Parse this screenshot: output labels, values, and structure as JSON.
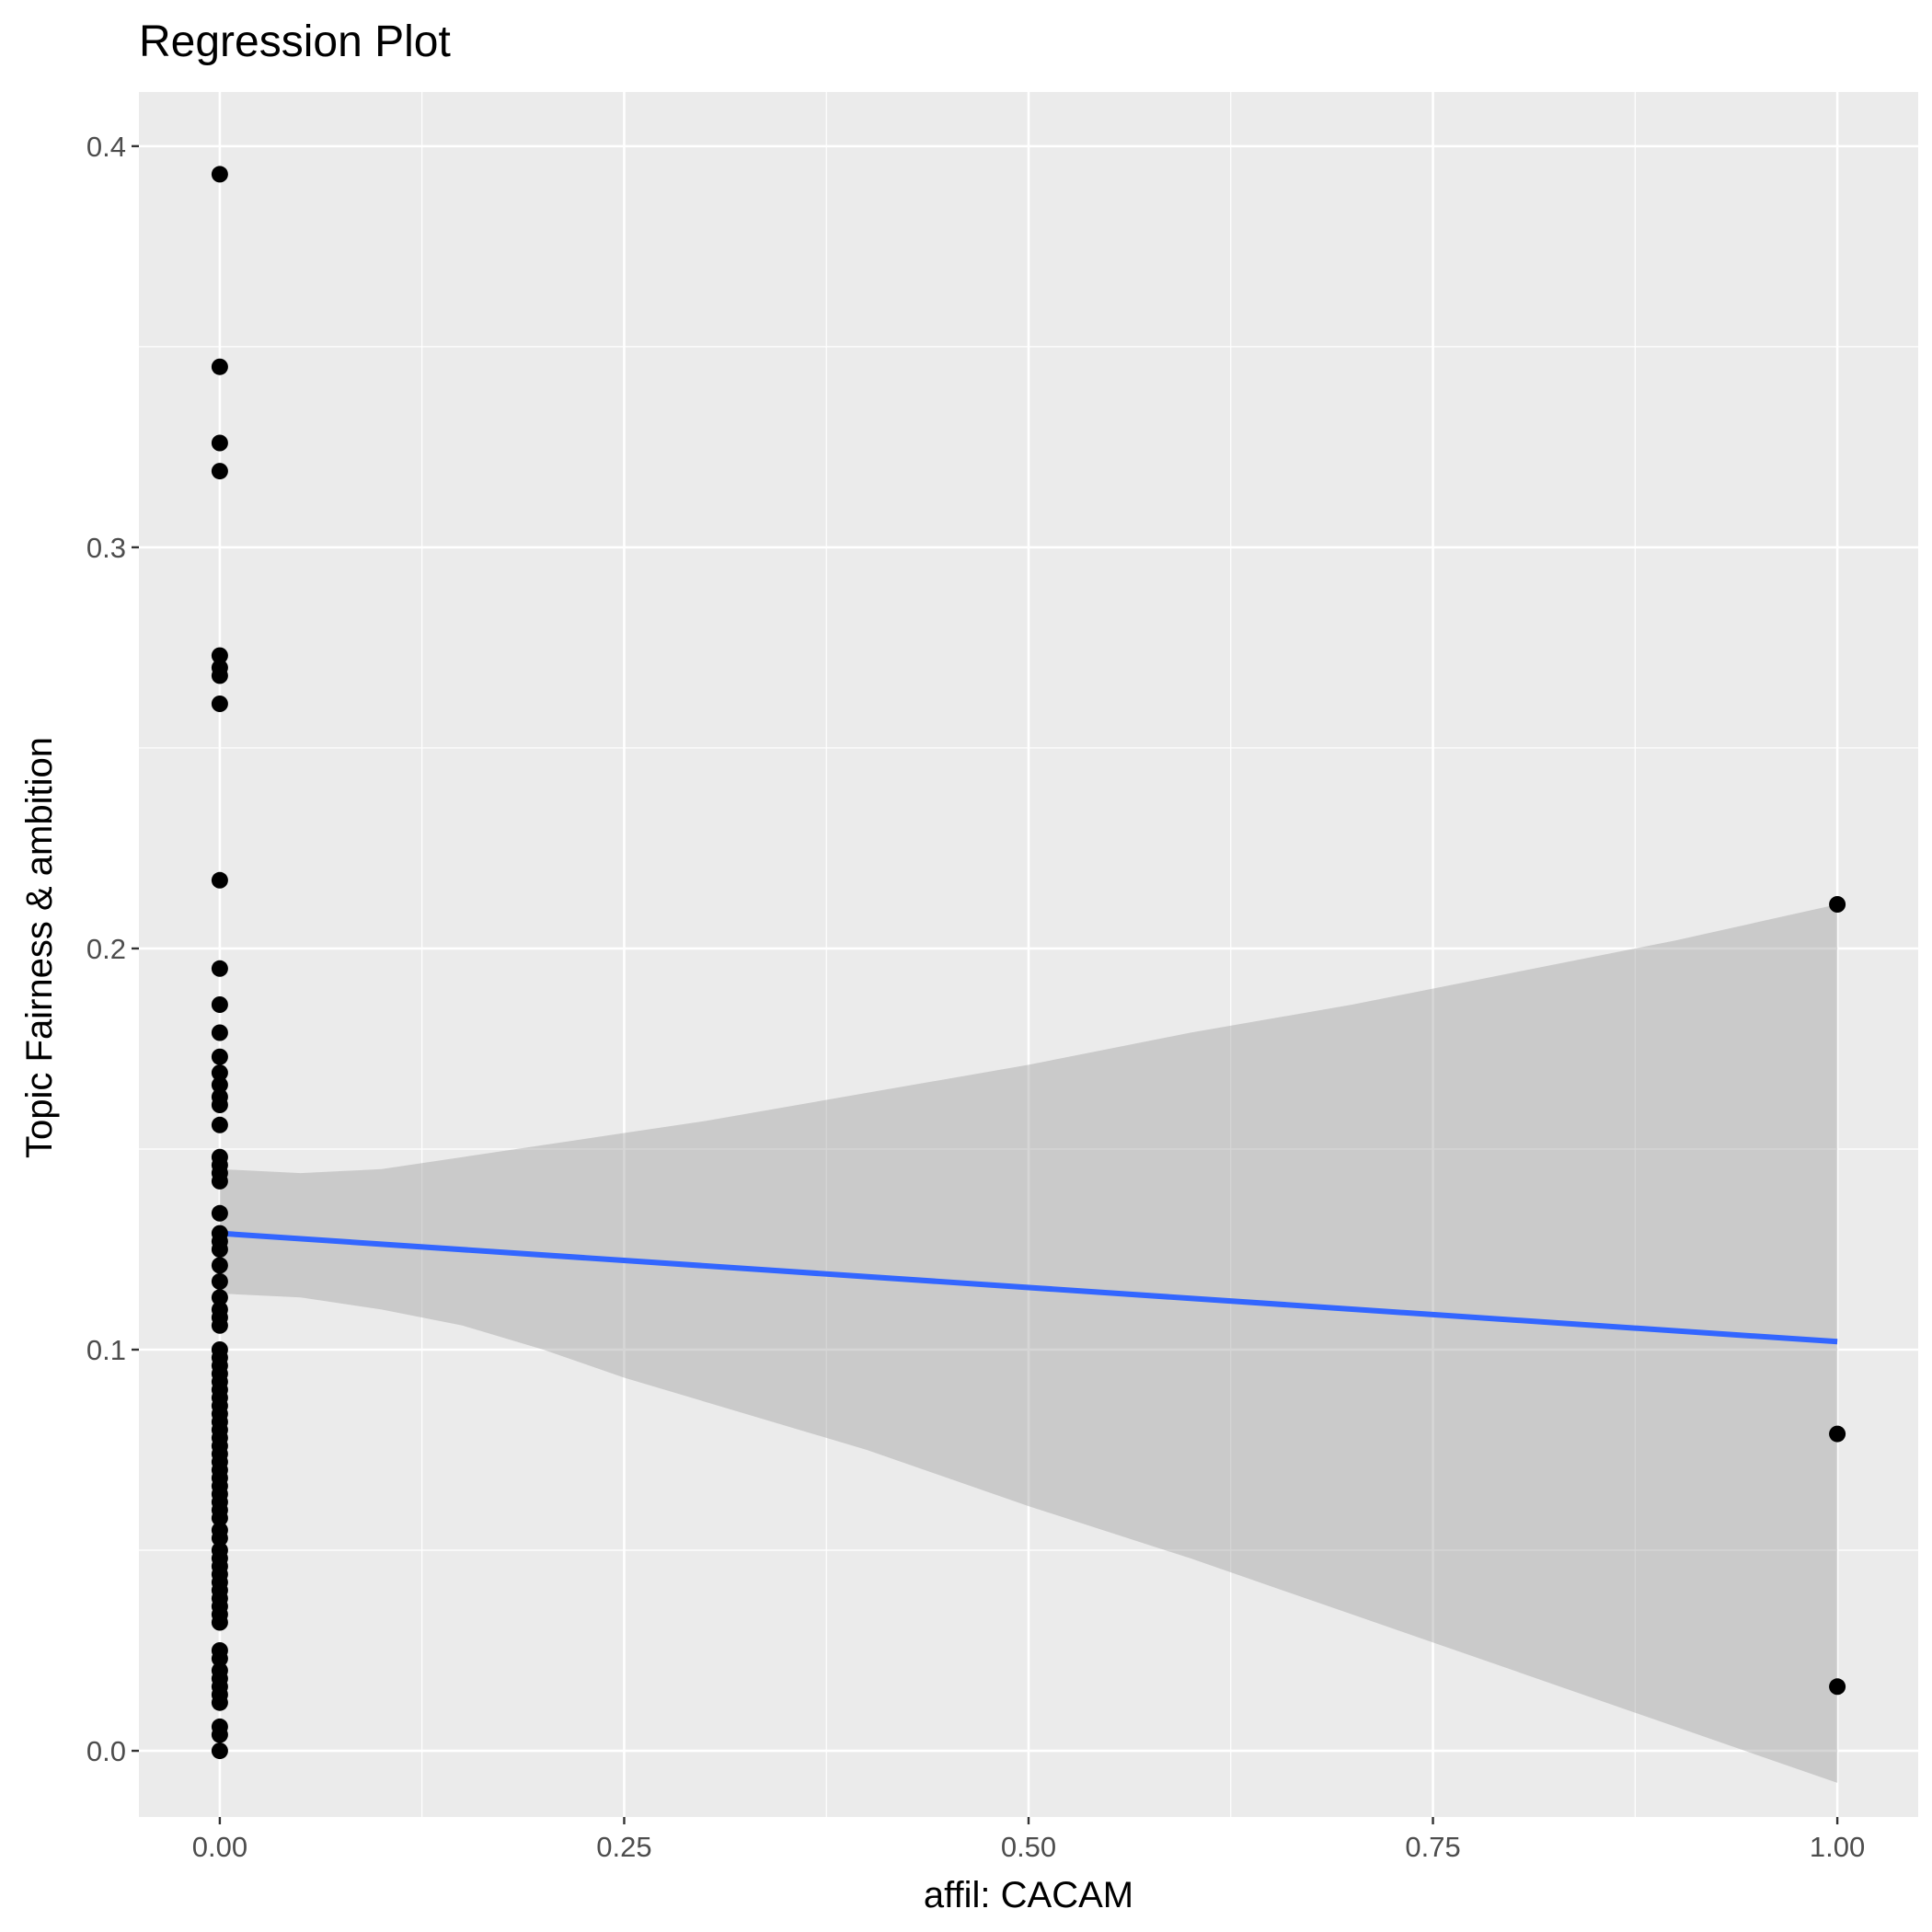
{
  "chart_data": {
    "type": "scatter",
    "title": "Regression Plot",
    "xlabel": "affil: CACAM",
    "ylabel": "Topic Fairness & ambition",
    "xlim": [
      -0.05,
      1.05
    ],
    "ylim": [
      -0.0165,
      0.4135
    ],
    "x_ticks": [
      0.0,
      0.25,
      0.5,
      0.75,
      1.0
    ],
    "x_tick_labels": [
      "0.00",
      "0.25",
      "0.50",
      "0.75",
      "1.00"
    ],
    "y_ticks": [
      0.0,
      0.1,
      0.2,
      0.3,
      0.4
    ],
    "y_tick_labels": [
      "0.0",
      "0.1",
      "0.2",
      "0.3",
      "0.4"
    ],
    "grid": true,
    "colors": {
      "panel_background": "#ebebeb",
      "grid": "#ffffff",
      "points": "#000000",
      "regression_line": "#3366ff",
      "confidence_band": "#999999"
    },
    "series": [
      {
        "kind": "points",
        "points": [
          [
            0,
            0.393
          ],
          [
            0,
            0.345
          ],
          [
            0,
            0.326
          ],
          [
            0,
            0.319
          ],
          [
            0,
            0.273
          ],
          [
            0,
            0.27
          ],
          [
            0,
            0.268
          ],
          [
            0,
            0.261
          ],
          [
            0,
            0.217
          ],
          [
            0,
            0.195
          ],
          [
            0,
            0.186
          ],
          [
            0,
            0.179
          ],
          [
            0,
            0.173
          ],
          [
            0,
            0.169
          ],
          [
            0,
            0.166
          ],
          [
            0,
            0.163
          ],
          [
            0,
            0.161
          ],
          [
            0,
            0.156
          ],
          [
            0,
            0.148
          ],
          [
            0,
            0.146
          ],
          [
            0,
            0.144
          ],
          [
            0,
            0.142
          ],
          [
            0,
            0.134
          ],
          [
            0,
            0.129
          ],
          [
            0,
            0.127
          ],
          [
            0,
            0.125
          ],
          [
            0,
            0.121
          ],
          [
            0,
            0.117
          ],
          [
            0,
            0.113
          ],
          [
            0,
            0.11
          ],
          [
            0,
            0.108
          ],
          [
            0,
            0.106
          ],
          [
            0,
            0.1
          ],
          [
            0,
            0.098
          ],
          [
            0,
            0.096
          ],
          [
            0,
            0.094
          ],
          [
            0,
            0.092
          ],
          [
            0,
            0.09
          ],
          [
            0,
            0.088
          ],
          [
            0,
            0.086
          ],
          [
            0,
            0.084
          ],
          [
            0,
            0.082
          ],
          [
            0,
            0.08
          ],
          [
            0,
            0.078
          ],
          [
            0,
            0.076
          ],
          [
            0,
            0.074
          ],
          [
            0,
            0.072
          ],
          [
            0,
            0.07
          ],
          [
            0,
            0.068
          ],
          [
            0,
            0.066
          ],
          [
            0,
            0.064
          ],
          [
            0,
            0.062
          ],
          [
            0,
            0.06
          ],
          [
            0,
            0.058
          ],
          [
            0,
            0.055
          ],
          [
            0,
            0.053
          ],
          [
            0,
            0.05
          ],
          [
            0,
            0.048
          ],
          [
            0,
            0.046
          ],
          [
            0,
            0.044
          ],
          [
            0,
            0.042
          ],
          [
            0,
            0.04
          ],
          [
            0,
            0.038
          ],
          [
            0,
            0.036
          ],
          [
            0,
            0.034
          ],
          [
            0,
            0.032
          ],
          [
            0,
            0.025
          ],
          [
            0,
            0.023
          ],
          [
            0,
            0.02
          ],
          [
            0,
            0.018
          ],
          [
            0,
            0.016
          ],
          [
            0,
            0.014
          ],
          [
            0,
            0.012
          ],
          [
            0,
            0.006
          ],
          [
            0,
            0.004
          ],
          [
            0,
            0.0
          ],
          [
            1,
            0.211
          ],
          [
            1,
            0.079
          ],
          [
            1,
            0.016
          ]
        ]
      },
      {
        "kind": "regression_line",
        "x": [
          0,
          1
        ],
        "y": [
          0.129,
          0.102
        ]
      },
      {
        "kind": "confidence_band",
        "x": [
          0.0,
          0.05,
          0.1,
          0.15,
          0.2,
          0.25,
          0.3,
          0.4,
          0.5,
          0.6,
          0.7,
          0.8,
          0.9,
          1.0
        ],
        "upper": [
          0.145,
          0.144,
          0.145,
          0.148,
          0.151,
          0.154,
          0.157,
          0.164,
          0.171,
          0.179,
          0.186,
          0.194,
          0.202,
          0.211
        ],
        "lower": [
          0.114,
          0.113,
          0.11,
          0.106,
          0.1,
          0.093,
          0.087,
          0.075,
          0.061,
          0.048,
          0.034,
          0.02,
          0.006,
          -0.008
        ]
      }
    ]
  }
}
